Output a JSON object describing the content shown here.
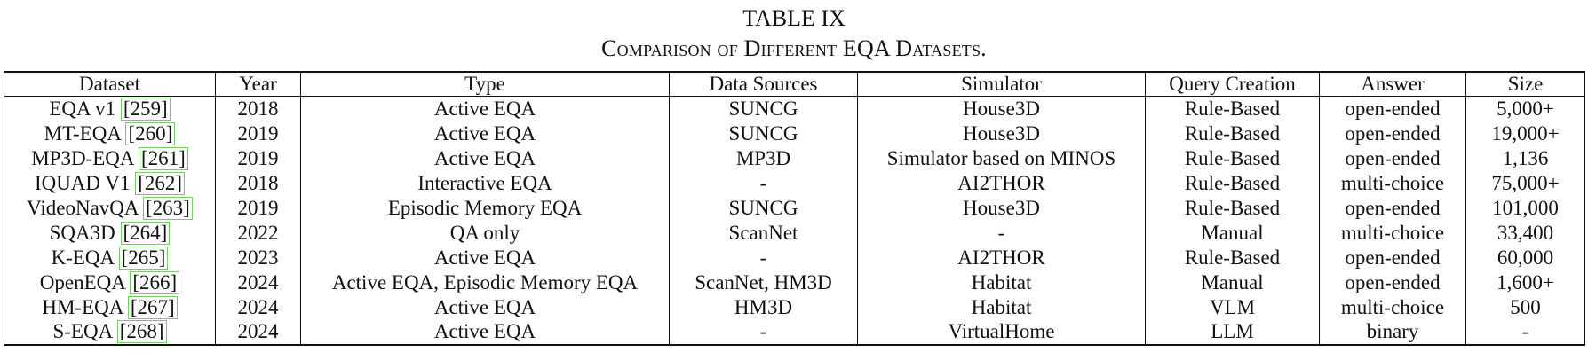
{
  "caption": {
    "label": "TABLE IX",
    "title": "Comparison of Different EQA Datasets."
  },
  "headers": [
    "Dataset",
    "Year",
    "Type",
    "Data Sources",
    "Simulator",
    "Query Creation",
    "Answer",
    "Size"
  ],
  "rows": [
    {
      "name": "EQA v1",
      "ref": "[259]",
      "year": "2018",
      "type": "Active EQA",
      "sources": "SUNCG",
      "simulator": "House3D",
      "query": "Rule-Based",
      "answer": "open-ended",
      "size": "5,000+"
    },
    {
      "name": "MT-EQA",
      "ref": "[260]",
      "year": "2019",
      "type": "Active EQA",
      "sources": "SUNCG",
      "simulator": "House3D",
      "query": "Rule-Based",
      "answer": "open-ended",
      "size": "19,000+"
    },
    {
      "name": "MP3D-EQA",
      "ref": "[261]",
      "year": "2019",
      "type": "Active EQA",
      "sources": "MP3D",
      "simulator": "Simulator based on MINOS",
      "query": "Rule-Based",
      "answer": "open-ended",
      "size": "1,136"
    },
    {
      "name": "IQUAD V1",
      "ref": "[262]",
      "year": "2018",
      "type": "Interactive EQA",
      "sources": "-",
      "simulator": "AI2THOR",
      "query": "Rule-Based",
      "answer": "multi-choice",
      "size": "75,000+"
    },
    {
      "name": "VideoNavQA",
      "ref": "[263]",
      "year": "2019",
      "type": "Episodic Memory EQA",
      "sources": "SUNCG",
      "simulator": "House3D",
      "query": "Rule-Based",
      "answer": "open-ended",
      "size": "101,000"
    },
    {
      "name": "SQA3D",
      "ref": "[264]",
      "year": "2022",
      "type": "QA only",
      "sources": "ScanNet",
      "simulator": "-",
      "query": "Manual",
      "answer": "multi-choice",
      "size": "33,400"
    },
    {
      "name": "K-EQA",
      "ref": "[265]",
      "year": "2023",
      "type": "Active EQA",
      "sources": "-",
      "simulator": "AI2THOR",
      "query": "Rule-Based",
      "answer": "open-ended",
      "size": "60,000"
    },
    {
      "name": "OpenEQA",
      "ref": "[266]",
      "year": "2024",
      "type": "Active EQA, Episodic Memory EQA",
      "sources": "ScanNet, HM3D",
      "simulator": "Habitat",
      "query": "Manual",
      "answer": "open-ended",
      "size": "1,600+"
    },
    {
      "name": "HM-EQA",
      "ref": "[267]",
      "year": "2024",
      "type": "Active EQA",
      "sources": "HM3D",
      "simulator": "Habitat",
      "query": "VLM",
      "answer": "multi-choice",
      "size": "500"
    },
    {
      "name": "S-EQA",
      "ref": "[268]",
      "year": "2024",
      "type": "Active EQA",
      "sources": "-",
      "simulator": "VirtualHome",
      "query": "LLM",
      "answer": "binary",
      "size": "-"
    }
  ]
}
